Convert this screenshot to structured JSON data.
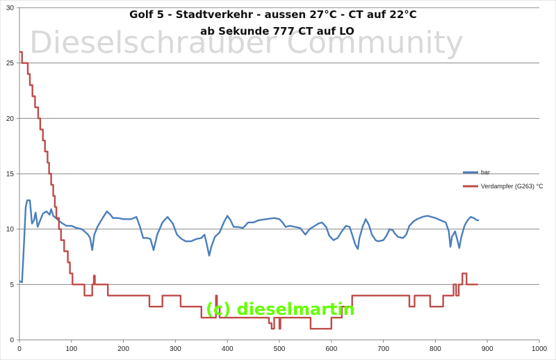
{
  "chart_data": {
    "type": "line",
    "title_line1": "Golf 5 - Stadtverkehr - aussen 27°C - CT auf 22°C",
    "title_line2": "ab Sekunde 777 CT auf LO",
    "watermark": "Dieselschrauber Community",
    "credit": "(c) dieselmartin",
    "xlim": [
      0,
      1000
    ],
    "ylim": [
      0,
      30
    ],
    "x_ticks": [
      "0",
      "100",
      "200",
      "300",
      "400",
      "500",
      "600",
      "700",
      "800",
      "900",
      "1000"
    ],
    "y_ticks": [
      "0",
      "5",
      "10",
      "15",
      "20",
      "25",
      "30"
    ],
    "grid": "horizontal",
    "legend_position": "right",
    "series": [
      {
        "name": "bar",
        "color": "#4a7ebb",
        "points": [
          [
            0,
            5.3
          ],
          [
            5,
            5.2
          ],
          [
            8,
            8
          ],
          [
            12,
            12
          ],
          [
            15,
            12.6
          ],
          [
            20,
            12.6
          ],
          [
            24,
            10.5
          ],
          [
            28,
            10.8
          ],
          [
            31,
            11.5
          ],
          [
            35,
            10.2
          ],
          [
            40,
            10.8
          ],
          [
            45,
            11.4
          ],
          [
            52,
            11.6
          ],
          [
            58,
            11.3
          ],
          [
            61,
            11.8
          ],
          [
            65,
            11.2
          ],
          [
            70,
            11
          ],
          [
            80,
            10.6
          ],
          [
            90,
            10.3
          ],
          [
            100,
            10.3
          ],
          [
            110,
            10.1
          ],
          [
            120,
            10
          ],
          [
            125,
            9.8
          ],
          [
            132,
            9.5
          ],
          [
            136,
            9.2
          ],
          [
            140,
            8.1
          ],
          [
            144,
            9.5
          ],
          [
            150,
            10.2
          ],
          [
            160,
            11
          ],
          [
            168,
            11.6
          ],
          [
            175,
            11.3
          ],
          [
            180,
            11
          ],
          [
            190,
            11
          ],
          [
            200,
            10.9
          ],
          [
            215,
            10.9
          ],
          [
            225,
            11.1
          ],
          [
            232,
            10.2
          ],
          [
            238,
            9.2
          ],
          [
            246,
            9.2
          ],
          [
            252,
            9.1
          ],
          [
            258,
            8.1
          ],
          [
            265,
            9.5
          ],
          [
            275,
            10.6
          ],
          [
            285,
            11.1
          ],
          [
            295,
            10.5
          ],
          [
            303,
            9.5
          ],
          [
            312,
            9.1
          ],
          [
            320,
            8.9
          ],
          [
            330,
            8.9
          ],
          [
            340,
            9.1
          ],
          [
            350,
            9.2
          ],
          [
            356,
            9.5
          ],
          [
            361,
            8.5
          ],
          [
            365,
            7.6
          ],
          [
            369,
            8.4
          ],
          [
            376,
            9.3
          ],
          [
            385,
            9.7
          ],
          [
            393,
            10.6
          ],
          [
            400,
            11.2
          ],
          [
            406,
            10.8
          ],
          [
            412,
            10.2
          ],
          [
            420,
            10.2
          ],
          [
            430,
            10.1
          ],
          [
            440,
            10.6
          ],
          [
            450,
            10.6
          ],
          [
            460,
            10.8
          ],
          [
            475,
            10.9
          ],
          [
            490,
            11
          ],
          [
            500,
            10.9
          ],
          [
            506,
            10.6
          ],
          [
            512,
            10.2
          ],
          [
            520,
            10.3
          ],
          [
            530,
            10.2
          ],
          [
            540,
            10.1
          ],
          [
            550,
            9.5
          ],
          [
            558,
            10
          ],
          [
            565,
            10.2
          ],
          [
            575,
            10.5
          ],
          [
            582,
            10.6
          ],
          [
            590,
            10.2
          ],
          [
            596,
            9.4
          ],
          [
            604,
            9
          ],
          [
            612,
            9.2
          ],
          [
            620,
            9.8
          ],
          [
            628,
            10.3
          ],
          [
            635,
            10.2
          ],
          [
            640,
            9.5
          ],
          [
            646,
            8.6
          ],
          [
            651,
            8.2
          ],
          [
            654,
            9.2
          ],
          [
            660,
            10.2
          ],
          [
            666,
            10.9
          ],
          [
            672,
            10.4
          ],
          [
            678,
            9.5
          ],
          [
            685,
            9
          ],
          [
            690,
            8.9
          ],
          [
            700,
            9
          ],
          [
            706,
            9.4
          ],
          [
            712,
            10
          ],
          [
            718,
            9.9
          ],
          [
            722,
            9.6
          ],
          [
            728,
            9.3
          ],
          [
            738,
            9.2
          ],
          [
            744,
            9.5
          ],
          [
            750,
            10.3
          ],
          [
            758,
            10.7
          ],
          [
            765,
            10.9
          ],
          [
            775,
            11.1
          ],
          [
            785,
            11.2
          ],
          [
            800,
            11
          ],
          [
            810,
            10.8
          ],
          [
            820,
            10.6
          ],
          [
            826,
            9.8
          ],
          [
            829,
            8.4
          ],
          [
            832,
            9.3
          ],
          [
            838,
            9.8
          ],
          [
            842,
            9.1
          ],
          [
            846,
            8.3
          ],
          [
            850,
            9.3
          ],
          [
            856,
            10.3
          ],
          [
            862,
            10.8
          ],
          [
            868,
            11.1
          ],
          [
            874,
            11
          ],
          [
            880,
            10.8
          ],
          [
            884,
            10.8
          ]
        ]
      },
      {
        "name": "Verdampfer (G263) °C",
        "color": "#be4b48",
        "steps": [
          [
            0,
            26
          ],
          [
            5,
            25
          ],
          [
            16,
            24
          ],
          [
            20,
            23
          ],
          [
            25,
            22
          ],
          [
            30,
            21
          ],
          [
            36,
            20
          ],
          [
            40,
            19
          ],
          [
            45,
            18
          ],
          [
            49,
            17
          ],
          [
            54,
            16
          ],
          [
            57,
            15
          ],
          [
            61,
            14
          ],
          [
            65,
            13
          ],
          [
            68,
            12
          ],
          [
            71,
            11
          ],
          [
            76,
            10
          ],
          [
            80,
            9
          ],
          [
            86,
            8
          ],
          [
            93,
            7
          ],
          [
            97,
            6
          ],
          [
            102,
            5
          ],
          [
            125,
            4
          ],
          [
            140,
            5
          ],
          [
            143,
            5.8
          ],
          [
            145,
            5
          ],
          [
            170,
            4
          ],
          [
            250,
            3
          ],
          [
            275,
            4
          ],
          [
            310,
            3
          ],
          [
            350,
            2
          ],
          [
            378,
            4
          ],
          [
            380,
            3
          ],
          [
            385,
            2
          ],
          [
            480,
            1.5
          ],
          [
            485,
            1
          ],
          [
            490,
            2
          ],
          [
            500,
            1
          ],
          [
            502,
            2
          ],
          [
            560,
            1
          ],
          [
            600,
            2
          ],
          [
            620,
            3
          ],
          [
            640,
            4
          ],
          [
            750,
            3
          ],
          [
            760,
            4
          ],
          [
            790,
            3
          ],
          [
            815,
            4
          ],
          [
            825,
            4
          ],
          [
            835,
            5
          ],
          [
            840,
            4
          ],
          [
            845,
            5
          ],
          [
            852,
            6
          ],
          [
            860,
            5
          ],
          [
            882,
            5
          ]
        ]
      }
    ]
  }
}
